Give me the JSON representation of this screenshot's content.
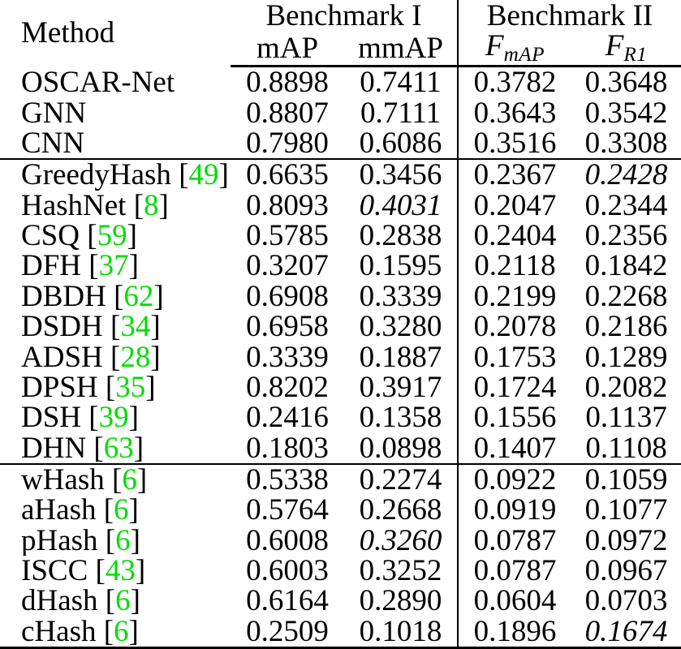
{
  "header": {
    "method_label": "Method",
    "benchmark1_label": "Benchmark I",
    "benchmark2_label": "Benchmark II",
    "col_map": "mAP",
    "col_mmap": "mmAP",
    "col_fmap": {
      "base": "F",
      "sub": "mAP"
    },
    "col_fr1": {
      "base": "F",
      "sub": "R1"
    }
  },
  "colors": {
    "citation_green": "#00DC00",
    "text_black": "#000000",
    "background": "#ffffff"
  },
  "legend_semantics": {
    "bold": "best result",
    "italic": "best baseline in section"
  },
  "chart_data": {
    "type": "table",
    "columns": [
      "Method",
      "mAP",
      "mmAP",
      "F_mAP",
      "F_R1"
    ],
    "column_groups": [
      {
        "label": "Benchmark I",
        "columns": [
          "mAP",
          "mmAP"
        ]
      },
      {
        "label": "Benchmark II",
        "columns": [
          "F_mAP",
          "F_R1"
        ]
      }
    ]
  },
  "table": {
    "sections": [
      {
        "rows": [
          {
            "method": "OSCAR-Net",
            "cite": null,
            "values": [
              "0.8898",
              "0.7411",
              "0.3782",
              "0.3648"
            ],
            "styles": [
              "b",
              "b",
              "b",
              "b"
            ]
          },
          {
            "method": "GNN",
            "cite": null,
            "values": [
              "0.8807",
              "0.7111",
              "0.3643",
              "0.3542"
            ],
            "styles": [
              "",
              "",
              "",
              ""
            ]
          },
          {
            "method": "CNN",
            "cite": null,
            "values": [
              "0.7980",
              "0.6086",
              "0.3516",
              "0.3308"
            ],
            "styles": [
              "",
              "",
              "",
              ""
            ]
          }
        ]
      },
      {
        "rows": [
          {
            "method": "GreedyHash",
            "cite": "49",
            "values": [
              "0.6635",
              "0.3456",
              "0.2367",
              "0.2428"
            ],
            "styles": [
              "",
              "",
              "",
              "i"
            ]
          },
          {
            "method": "HashNet",
            "cite": "8",
            "values": [
              "0.8093",
              "0.4031",
              "0.2047",
              "0.2344"
            ],
            "styles": [
              "",
              "i",
              "",
              ""
            ]
          },
          {
            "method": "CSQ",
            "cite": "59",
            "values": [
              "0.5785",
              "0.2838",
              "0.2404",
              "0.2356"
            ],
            "styles": [
              "",
              "",
              "",
              ""
            ]
          },
          {
            "method": "DFH",
            "cite": "37",
            "values": [
              "0.3207",
              "0.1595",
              "0.2118",
              "0.1842"
            ],
            "styles": [
              "",
              "",
              "",
              ""
            ]
          },
          {
            "method": "DBDH",
            "cite": "62",
            "values": [
              "0.6908",
              "0.3339",
              "0.2199",
              "0.2268"
            ],
            "styles": [
              "",
              "",
              "",
              ""
            ]
          },
          {
            "method": "DSDH",
            "cite": "34",
            "values": [
              "0.6958",
              "0.3280",
              "0.2078",
              "0.2186"
            ],
            "styles": [
              "",
              "",
              "",
              ""
            ]
          },
          {
            "method": "ADSH",
            "cite": "28",
            "values": [
              "0.3339",
              "0.1887",
              "0.1753",
              "0.1289"
            ],
            "styles": [
              "",
              "",
              "",
              ""
            ]
          },
          {
            "method": "DPSH",
            "cite": "35",
            "values": [
              "0.8202",
              "0.3917",
              "0.1724",
              "0.2082"
            ],
            "styles": [
              "",
              "",
              "",
              ""
            ]
          },
          {
            "method": "DSH",
            "cite": "39",
            "values": [
              "0.2416",
              "0.1358",
              "0.1556",
              "0.1137"
            ],
            "styles": [
              "",
              "",
              "",
              ""
            ]
          },
          {
            "method": "DHN",
            "cite": "63",
            "values": [
              "0.1803",
              "0.0898",
              "0.1407",
              "0.1108"
            ],
            "styles": [
              "",
              "",
              "",
              ""
            ]
          }
        ]
      },
      {
        "rows": [
          {
            "method": "wHash",
            "cite": "6",
            "values": [
              "0.5338",
              "0.2274",
              "0.0922",
              "0.1059"
            ],
            "styles": [
              "",
              "",
              "",
              ""
            ]
          },
          {
            "method": "aHash",
            "cite": "6",
            "values": [
              "0.5764",
              "0.2668",
              "0.0919",
              "0.1077"
            ],
            "styles": [
              "",
              "",
              "",
              ""
            ]
          },
          {
            "method": "pHash",
            "cite": "6",
            "values": [
              "0.6008",
              "0.3260",
              "0.0787",
              "0.0972"
            ],
            "styles": [
              "",
              "i",
              "",
              ""
            ]
          },
          {
            "method": "ISCC",
            "cite": "43",
            "values": [
              "0.6003",
              "0.3252",
              "0.0787",
              "0.0967"
            ],
            "styles": [
              "",
              "",
              "",
              ""
            ]
          },
          {
            "method": "dHash",
            "cite": "6",
            "values": [
              "0.6164",
              "0.2890",
              "0.0604",
              "0.0703"
            ],
            "styles": [
              "",
              "",
              "",
              ""
            ]
          },
          {
            "method": "cHash",
            "cite": "6",
            "values": [
              "0.2509",
              "0.1018",
              "0.1896",
              "0.1674"
            ],
            "styles": [
              "",
              "",
              "",
              "i"
            ]
          }
        ]
      }
    ]
  }
}
